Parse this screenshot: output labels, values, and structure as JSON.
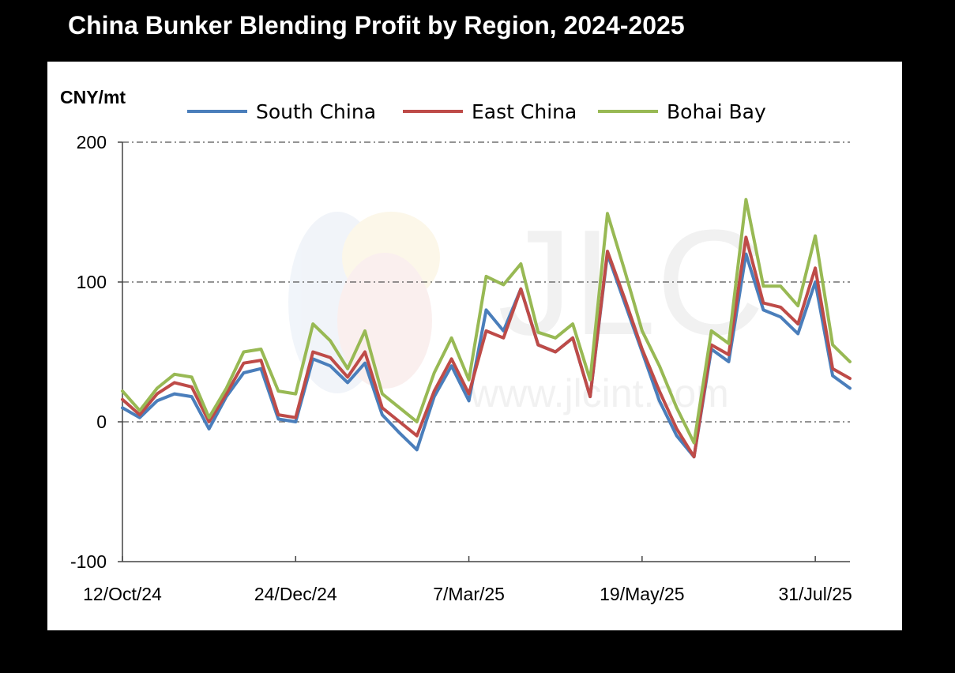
{
  "page": {
    "title": "China Bunker Blending Profit by Region, 2024-2025",
    "background": "#000000",
    "panel_background": "#ffffff"
  },
  "watermark": {
    "logo_text": "JLC",
    "url_text": "www.jlcint.com"
  },
  "chart_data": {
    "type": "line",
    "title": "China Bunker Blending Profit by Region, 2024-2025",
    "ylabel": "CNY/mt",
    "xlabel": "",
    "ylim": [
      -100,
      200
    ],
    "yticks": [
      200,
      100,
      0,
      -100
    ],
    "x_tick_labels": [
      "12/Oct/24",
      "24/Dec/24",
      "7/Mar/25",
      "19/May/25",
      "31/Jul/25"
    ],
    "x_tick_index": [
      0,
      10,
      20,
      30,
      40
    ],
    "grid": true,
    "legend_position": "top",
    "series": [
      {
        "name": "South China",
        "color": "#4a7ebb",
        "values": [
          10,
          3,
          15,
          20,
          18,
          -5,
          18,
          35,
          38,
          2,
          0,
          45,
          40,
          28,
          42,
          5,
          -8,
          -20,
          18,
          40,
          15,
          80,
          65,
          95,
          55,
          50,
          60,
          18,
          120,
          85,
          50,
          15,
          -10,
          -25,
          52,
          43,
          120,
          80,
          75,
          63,
          100,
          33,
          24
        ]
      },
      {
        "name": "East China",
        "color": "#be4b48",
        "values": [
          16,
          5,
          20,
          28,
          25,
          0,
          20,
          42,
          44,
          5,
          3,
          50,
          46,
          32,
          50,
          10,
          0,
          -10,
          22,
          45,
          20,
          65,
          60,
          95,
          55,
          50,
          60,
          18,
          122,
          88,
          52,
          22,
          -5,
          -25,
          55,
          48,
          132,
          85,
          82,
          70,
          110,
          38,
          31
        ]
      },
      {
        "name": "Bohai Bay",
        "color": "#98b954",
        "values": [
          22,
          8,
          24,
          34,
          32,
          3,
          24,
          50,
          52,
          22,
          20,
          70,
          58,
          38,
          65,
          20,
          10,
          0,
          35,
          60,
          30,
          104,
          98,
          113,
          64,
          60,
          70,
          30,
          149,
          108,
          65,
          40,
          10,
          -15,
          65,
          56,
          159,
          97,
          97,
          83,
          133,
          55,
          43
        ]
      }
    ]
  }
}
